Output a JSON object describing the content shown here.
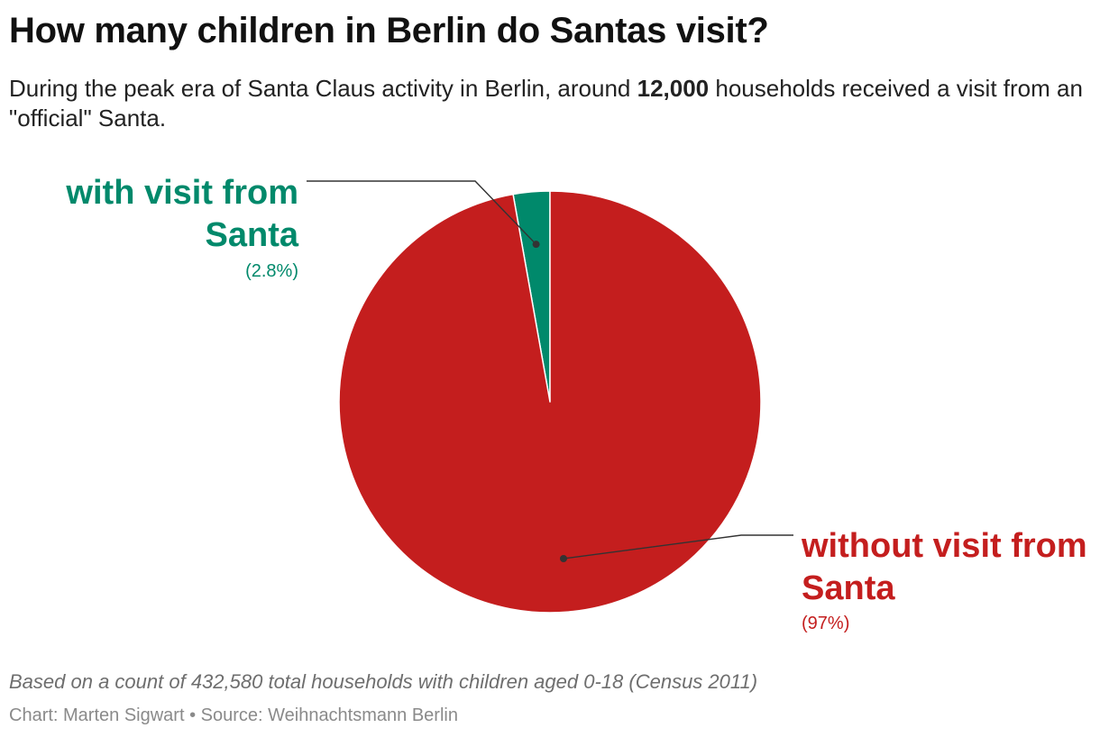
{
  "header": {
    "title": "How many children in Berlin do Santas visit?",
    "subtitle_before": "During the peak era of Santa Claus activity in Berlin, around ",
    "subtitle_bold": "12,000",
    "subtitle_after": " households received a visit from an \"official\" Santa."
  },
  "chart_data": {
    "type": "pie",
    "title": "How many children in Berlin do Santas visit?",
    "slices": [
      {
        "name": "with visit from Santa",
        "value": 2.8,
        "pct_label": "(2.8%)",
        "color": "#00896b",
        "label_lines": [
          "with visit from",
          "Santa"
        ]
      },
      {
        "name": "without visit from Santa",
        "value": 97.2,
        "pct_label": "(97%)",
        "color": "#c41e1e",
        "label_lines": [
          "without visit from",
          "Santa"
        ]
      }
    ]
  },
  "footer": {
    "notes": "Based on a count of 432,580 total households with children aged 0-18 (Census 2011)",
    "credit": "Chart: Marten Sigwart • Source: Weihnachtsmann Berlin"
  }
}
